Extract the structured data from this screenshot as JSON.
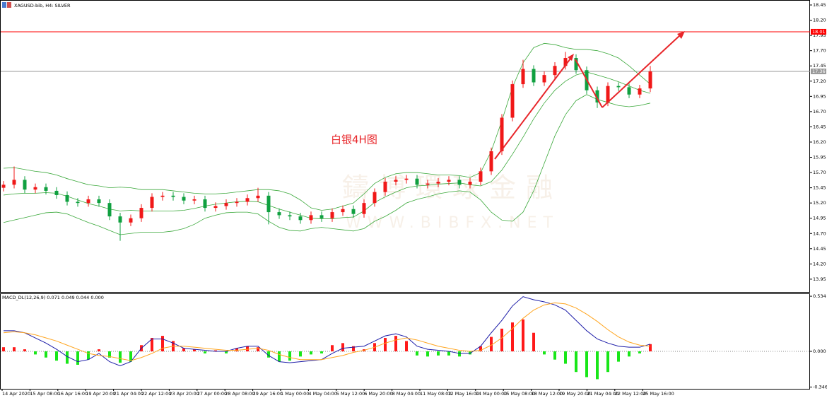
{
  "header": {
    "title": "XAGUSD-bib, H4: SILVER"
  },
  "chart_data": [
    {
      "type": "candlestick",
      "annotation": "白银4H图",
      "watermark": "鑄博環球金融",
      "watermark_url": "WWW.BIBFX.NET",
      "ylim": [
        13.74,
        18.52
      ],
      "yticks": [
        18.45,
        {
          "value": 18.2,
          "label": "18.20"
        },
        17.95,
        {
          "value": 17.7,
          "label": "17.70"
        },
        17.45,
        {
          "value": 17.2,
          "label": "17.20"
        },
        16.95,
        {
          "value": 16.7,
          "label": "16.70"
        },
        16.45,
        {
          "value": 16.2,
          "label": "16.20"
        },
        15.95,
        {
          "value": 15.7,
          "label": "15.70"
        },
        15.45,
        {
          "value": 15.2,
          "label": "15.20"
        },
        14.95,
        {
          "value": 14.7,
          "label": "14.70"
        },
        14.45,
        {
          "value": 14.2,
          "label": "14.20"
        },
        13.95
      ],
      "levels": [
        {
          "value": 18.01,
          "color": "#ff0000"
        },
        {
          "value": 17.36,
          "color": "#9a9a9a"
        }
      ],
      "up_color": "#f01818",
      "down_color": "#10a040",
      "open": [
        15.45,
        15.5,
        15.58,
        15.42,
        15.46,
        15.4,
        15.33,
        15.22,
        15.2,
        15.26,
        15.2,
        14.98,
        14.88,
        14.95,
        15.12,
        15.3,
        15.32,
        15.3,
        15.24,
        15.26,
        15.12,
        15.15,
        15.2,
        15.22,
        15.28,
        15.32,
        15.05,
        15.0,
        14.98,
        14.92,
        15.0,
        14.95,
        15.05,
        15.1,
        15.02,
        15.2,
        15.38,
        15.55,
        15.58,
        15.6,
        15.5,
        15.52,
        15.55,
        15.58,
        15.5,
        15.55,
        15.72,
        16.05,
        16.6,
        17.15,
        17.4,
        17.18,
        17.3,
        17.45,
        17.58,
        17.38,
        17.05,
        16.85,
        17.12,
        17.1,
        16.98,
        17.08
      ],
      "high": [
        15.56,
        15.8,
        15.64,
        15.52,
        15.52,
        15.46,
        15.39,
        15.28,
        15.32,
        15.32,
        15.26,
        15.04,
        15.01,
        15.18,
        15.36,
        15.38,
        15.38,
        15.36,
        15.32,
        15.32,
        15.21,
        15.26,
        15.28,
        15.34,
        15.45,
        15.38,
        15.11,
        15.06,
        15.04,
        15.06,
        15.06,
        15.11,
        15.16,
        15.16,
        15.26,
        15.44,
        15.61,
        15.64,
        15.66,
        15.66,
        15.58,
        15.61,
        15.64,
        15.64,
        15.61,
        15.78,
        16.11,
        16.66,
        17.21,
        17.55,
        17.46,
        17.36,
        17.51,
        17.68,
        17.64,
        17.44,
        17.11,
        17.18,
        17.18,
        17.16,
        17.14,
        17.45
      ],
      "low": [
        15.39,
        15.44,
        15.36,
        15.36,
        15.34,
        15.27,
        15.16,
        15.14,
        15.14,
        15.14,
        14.92,
        14.58,
        14.82,
        14.89,
        15.06,
        15.24,
        15.24,
        15.18,
        15.18,
        15.06,
        15.06,
        15.09,
        15.14,
        15.16,
        15.22,
        14.85,
        14.94,
        14.92,
        14.86,
        14.86,
        14.89,
        14.89,
        14.99,
        14.96,
        14.96,
        15.14,
        15.32,
        15.49,
        15.52,
        15.44,
        15.44,
        15.46,
        15.49,
        15.44,
        15.44,
        15.49,
        15.66,
        15.99,
        16.54,
        17.09,
        17.12,
        17.12,
        17.24,
        17.39,
        17.32,
        16.99,
        16.76,
        16.79,
        17.04,
        16.92,
        16.92,
        17.02
      ],
      "close": [
        15.5,
        15.58,
        15.42,
        15.46,
        15.4,
        15.33,
        15.22,
        15.2,
        15.26,
        15.2,
        14.98,
        14.88,
        14.95,
        15.12,
        15.3,
        15.32,
        15.3,
        15.24,
        15.26,
        15.12,
        15.15,
        15.2,
        15.22,
        15.28,
        15.32,
        15.05,
        15.0,
        14.98,
        14.92,
        15.0,
        14.95,
        15.05,
        15.1,
        15.02,
        15.2,
        15.38,
        15.55,
        15.58,
        15.6,
        15.5,
        15.52,
        15.55,
        15.58,
        15.5,
        15.55,
        15.72,
        16.05,
        16.6,
        17.15,
        17.4,
        17.18,
        17.3,
        17.45,
        17.58,
        17.38,
        17.05,
        16.85,
        17.12,
        17.1,
        16.98,
        17.08,
        17.36
      ],
      "bollinger": {
        "color": "#3aa83a",
        "upper": [
          15.77,
          15.78,
          15.75,
          15.72,
          15.7,
          15.66,
          15.6,
          15.55,
          15.5,
          15.48,
          15.45,
          15.46,
          15.45,
          15.42,
          15.42,
          15.42,
          15.4,
          15.38,
          15.36,
          15.35,
          15.35,
          15.36,
          15.38,
          15.4,
          15.42,
          15.42,
          15.4,
          15.35,
          15.25,
          15.12,
          15.08,
          15.1,
          15.15,
          15.2,
          15.35,
          15.52,
          15.62,
          15.68,
          15.7,
          15.7,
          15.68,
          15.66,
          15.66,
          15.65,
          15.62,
          15.7,
          16.05,
          16.55,
          17.1,
          17.5,
          17.75,
          17.82,
          17.8,
          17.75,
          17.72,
          17.72,
          17.7,
          17.65,
          17.58,
          17.45,
          17.3,
          17.15
        ],
        "middle": [
          15.33,
          15.35,
          15.36,
          15.36,
          15.37,
          15.36,
          15.31,
          15.25,
          15.19,
          15.15,
          15.1,
          15.07,
          15.08,
          15.07,
          15.07,
          15.07,
          15.07,
          15.08,
          15.11,
          15.15,
          15.18,
          15.2,
          15.22,
          15.23,
          15.22,
          15.16,
          15.1,
          15.05,
          15.0,
          14.95,
          14.94,
          14.94,
          14.96,
          14.97,
          15.07,
          15.21,
          15.3,
          15.38,
          15.45,
          15.48,
          15.49,
          15.51,
          15.52,
          15.53,
          15.5,
          15.48,
          15.55,
          15.74,
          16.0,
          16.28,
          16.58,
          16.84,
          17.05,
          17.2,
          17.3,
          17.35,
          17.3,
          17.25,
          17.19,
          17.12,
          17.05,
          17.0
        ],
        "lower": [
          14.88,
          14.92,
          14.96,
          15.0,
          15.04,
          15.05,
          15.02,
          14.95,
          14.88,
          14.82,
          14.75,
          14.68,
          14.7,
          14.72,
          14.72,
          14.72,
          14.74,
          14.78,
          14.85,
          14.95,
          15.0,
          15.04,
          15.05,
          15.05,
          15.02,
          14.9,
          14.8,
          14.75,
          14.74,
          14.78,
          14.8,
          14.78,
          14.76,
          14.74,
          14.78,
          14.9,
          14.98,
          15.08,
          15.2,
          15.26,
          15.3,
          15.35,
          15.38,
          15.4,
          15.38,
          15.25,
          15.05,
          14.92,
          14.9,
          15.05,
          15.4,
          15.85,
          16.3,
          16.65,
          16.88,
          16.98,
          16.9,
          16.85,
          16.8,
          16.78,
          16.8,
          16.84
        ]
      },
      "time_labels": [
        "14 Apr 2020",
        "15 Apr 08:00",
        "16 Apr 16:00",
        "19 Apr 20:00",
        "21 Apr 04:00",
        "22 Apr 12:00",
        "23 Apr 20:00",
        "27 Apr 00:00",
        "28 Apr 08:00",
        "29 Apr 16:00",
        "1 May 00:00",
        "4 May 04:00",
        "5 May 12:00",
        "6 May 20:00",
        "8 May 04:00",
        "11 May 08:00",
        "12 May 16:00",
        "14 May 00:00",
        "15 May 08:00",
        "18 May 12:00",
        "19 May 20:00",
        "21 May 04:00",
        "22 May 12:00",
        "25 May 16:00"
      ]
    },
    {
      "type": "macd",
      "label": "MACD_DL(12,26,9) 0.071 0.049 0.044 0.000",
      "ylim": [
        -0.363,
        0.555
      ],
      "yticks": [
        0.534,
        {
          "value": 0,
          "label": "0.000"
        },
        -0.346
      ],
      "pos_color": "#ff1a1a",
      "neg_color": "#19e619",
      "macd_color": "#1c1ca8",
      "signal_color": "#ffa51f",
      "histogram": [
        0.04,
        0.04,
        0.02,
        -0.03,
        -0.06,
        -0.09,
        -0.12,
        -0.13,
        -0.08,
        0.02,
        -0.06,
        -0.11,
        -0.1,
        0.06,
        0.13,
        0.15,
        0.1,
        0.03,
        0.02,
        -0.02,
        0.01,
        -0.02,
        0.03,
        0.05,
        0.04,
        -0.06,
        -0.1,
        -0.09,
        -0.05,
        -0.03,
        -0.02,
        0.06,
        0.08,
        0.05,
        0.02,
        0.08,
        0.13,
        0.15,
        0.1,
        -0.04,
        -0.05,
        -0.04,
        -0.04,
        -0.05,
        -0.03,
        0.05,
        0.14,
        0.22,
        0.28,
        0.31,
        0.18,
        -0.03,
        -0.08,
        -0.12,
        -0.2,
        -0.25,
        -0.27,
        -0.2,
        -0.1,
        -0.05,
        -0.02,
        0.07
      ],
      "macd": [
        0.2,
        0.2,
        0.18,
        0.13,
        0.08,
        0.02,
        -0.05,
        -0.1,
        -0.08,
        -0.02,
        -0.1,
        -0.14,
        -0.1,
        0.03,
        0.12,
        0.12,
        0.08,
        0.03,
        0.02,
        0.01,
        0.0,
        0.0,
        0.03,
        0.05,
        0.05,
        -0.04,
        -0.1,
        -0.11,
        -0.1,
        -0.09,
        -0.08,
        -0.02,
        0.03,
        0.04,
        0.05,
        0.1,
        0.15,
        0.17,
        0.14,
        0.05,
        0.02,
        0.01,
        0.0,
        -0.02,
        -0.02,
        0.05,
        0.18,
        0.3,
        0.44,
        0.53,
        0.5,
        0.48,
        0.45,
        0.4,
        0.3,
        0.2,
        0.12,
        0.08,
        0.05,
        0.04,
        0.04,
        0.07
      ],
      "signal": [
        0.18,
        0.19,
        0.18,
        0.16,
        0.13,
        0.1,
        0.06,
        0.02,
        -0.02,
        -0.04,
        -0.05,
        -0.07,
        -0.09,
        -0.06,
        -0.02,
        0.03,
        0.05,
        0.05,
        0.04,
        0.03,
        0.02,
        0.01,
        0.01,
        0.02,
        0.03,
        0.01,
        -0.03,
        -0.06,
        -0.08,
        -0.08,
        -0.08,
        -0.06,
        -0.04,
        -0.01,
        0.01,
        0.04,
        0.08,
        0.11,
        0.13,
        0.11,
        0.08,
        0.05,
        0.03,
        0.01,
        0.0,
        0.01,
        0.06,
        0.13,
        0.22,
        0.32,
        0.4,
        0.45,
        0.47,
        0.46,
        0.42,
        0.36,
        0.29,
        0.21,
        0.14,
        0.09,
        0.06,
        0.05
      ]
    }
  ]
}
